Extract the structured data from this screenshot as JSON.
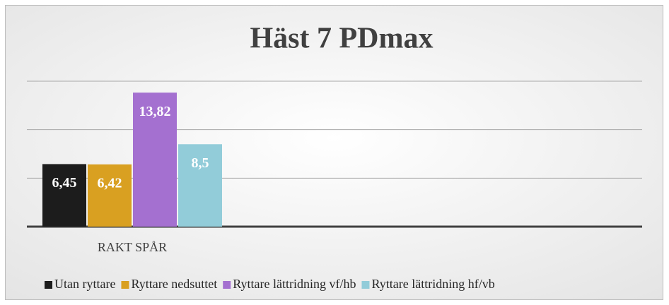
{
  "chart_data": {
    "type": "bar",
    "title": "Häst 7 PDmax",
    "categories": [
      "RAKT SPÅR"
    ],
    "series": [
      {
        "name": "Utan ryttare",
        "color": "#1c1c1c",
        "values": [
          6.45
        ],
        "value_labels": [
          "6,45"
        ]
      },
      {
        "name": "Ryttare nedsuttet",
        "color": "#d9a021",
        "values": [
          6.42
        ],
        "value_labels": [
          "6,42"
        ]
      },
      {
        "name": "Ryttare lättridning vf/hb",
        "color": "#a470d0",
        "values": [
          13.82
        ],
        "value_labels": [
          "13,82"
        ]
      },
      {
        "name": "Ryttare lättridning hf/vb",
        "color": "#92ccd9",
        "values": [
          8.5
        ],
        "value_labels": [
          "8,5"
        ]
      }
    ],
    "ylim": [
      0,
      15
    ],
    "yticks": [
      0,
      5,
      10,
      15
    ],
    "grid": true,
    "legend": "bottom"
  }
}
